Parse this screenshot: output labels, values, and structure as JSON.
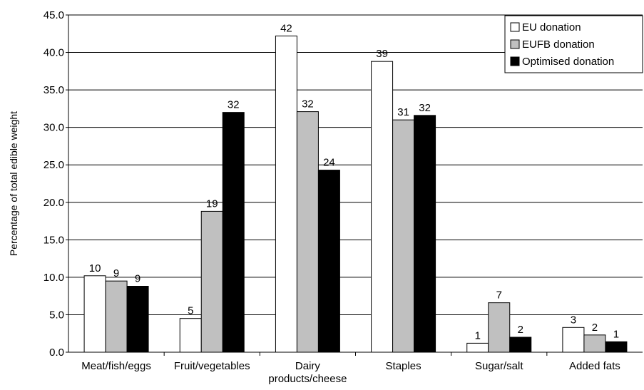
{
  "chart_data": {
    "type": "bar",
    "title": "",
    "xlabel": "",
    "ylabel": "Percentage of total edible weight",
    "ylim": [
      0,
      45
    ],
    "yticks": [
      "0.0",
      "5.0",
      "10.0",
      "15.0",
      "20.0",
      "25.0",
      "30.0",
      "35.0",
      "40.0",
      "45.0"
    ],
    "grid": true,
    "legend_position": "top-right",
    "categories": [
      [
        "Meat/fish/eggs"
      ],
      [
        "Fruit/vegetables"
      ],
      [
        "Dairy",
        "products/cheese"
      ],
      [
        "Staples"
      ],
      [
        "Sugar/salt"
      ],
      [
        "Added fats"
      ]
    ],
    "series": [
      {
        "name": "EU donation",
        "color": "#ffffff",
        "values": [
          10.2,
          4.5,
          42.2,
          38.8,
          1.2,
          3.3
        ],
        "labels": [
          "10",
          "5",
          "42",
          "39",
          "1",
          "3"
        ]
      },
      {
        "name": "EUFB donation",
        "color": "#c0c0c0",
        "values": [
          9.5,
          18.8,
          32.1,
          31.0,
          6.6,
          2.3
        ],
        "labels": [
          "9",
          "19",
          "32",
          "31",
          "7",
          "2"
        ]
      },
      {
        "name": "Optimised donation",
        "color": "#000000",
        "values": [
          8.8,
          32.0,
          24.3,
          31.6,
          2.0,
          1.4
        ],
        "labels": [
          "9",
          "32",
          "24",
          "32",
          "2",
          "1"
        ]
      }
    ]
  }
}
